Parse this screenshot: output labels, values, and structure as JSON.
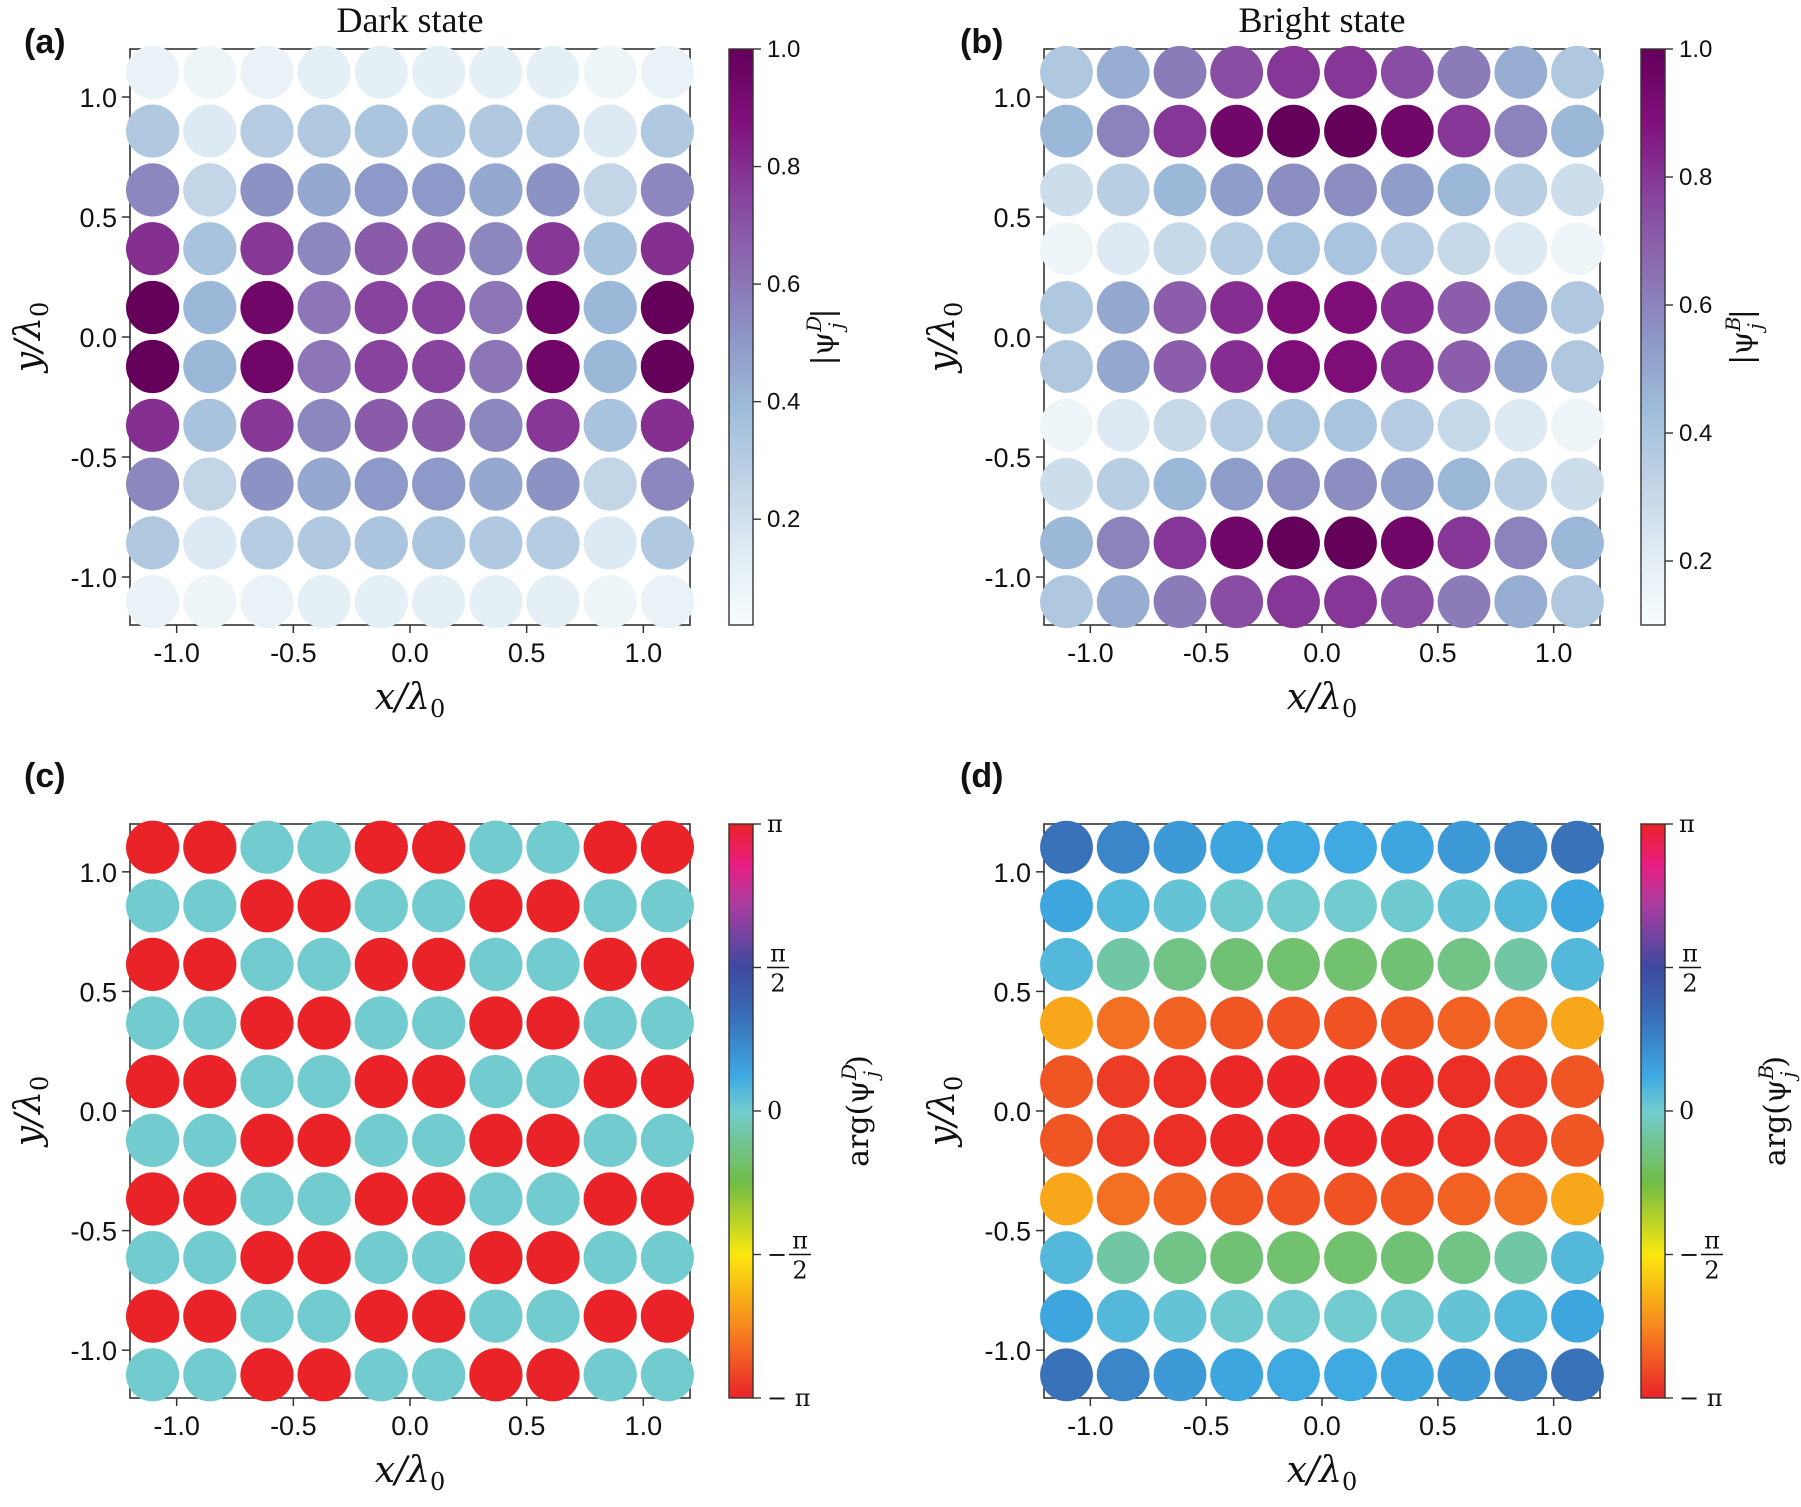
{
  "chart_data": [
    {
      "id": "a",
      "type": "scatter",
      "panel_label": "(a)",
      "title": "Dark state",
      "xlabel": "x/λ0",
      "ylabel": "y/λ0",
      "xlim": [
        -1.2,
        1.2
      ],
      "ylim": [
        -1.2,
        1.2
      ],
      "xticks": [
        "-1.0",
        "-0.5",
        "0.0",
        "0.5",
        "1.0"
      ],
      "yticks": [
        "-1.0",
        "-0.5",
        "0.0",
        "0.5",
        "1.0"
      ],
      "grid_coords": [
        -1.103,
        -0.858,
        -0.613,
        -0.368,
        -0.123,
        0.123,
        0.368,
        0.613,
        0.858,
        1.103
      ],
      "colorbar": {
        "label": "|ψ_j^D|",
        "colormap": "BuPu",
        "range": [
          0.02,
          1.0
        ],
        "ticks": [
          "1.0",
          "0.8",
          "0.6",
          "0.4",
          "0.2"
        ],
        "tick_values": [
          1.0,
          0.8,
          0.6,
          0.4,
          0.2
        ]
      },
      "values_rows_top_to_bottom": [
        [
          0.1,
          0.07,
          0.1,
          0.12,
          0.12,
          0.12,
          0.12,
          0.12,
          0.07,
          0.1
        ],
        [
          0.32,
          0.15,
          0.3,
          0.32,
          0.34,
          0.34,
          0.32,
          0.3,
          0.15,
          0.32
        ],
        [
          0.55,
          0.25,
          0.52,
          0.45,
          0.5,
          0.5,
          0.45,
          0.52,
          0.25,
          0.55
        ],
        [
          0.8,
          0.35,
          0.78,
          0.55,
          0.68,
          0.68,
          0.55,
          0.78,
          0.35,
          0.8
        ],
        [
          1.0,
          0.4,
          0.95,
          0.6,
          0.75,
          0.75,
          0.6,
          0.95,
          0.4,
          1.0
        ],
        [
          1.0,
          0.4,
          0.95,
          0.6,
          0.75,
          0.75,
          0.6,
          0.95,
          0.4,
          1.0
        ],
        [
          0.8,
          0.35,
          0.78,
          0.55,
          0.68,
          0.68,
          0.55,
          0.78,
          0.35,
          0.8
        ],
        [
          0.55,
          0.25,
          0.52,
          0.45,
          0.5,
          0.5,
          0.45,
          0.52,
          0.25,
          0.55
        ],
        [
          0.32,
          0.15,
          0.3,
          0.32,
          0.34,
          0.34,
          0.32,
          0.3,
          0.15,
          0.32
        ],
        [
          0.1,
          0.07,
          0.1,
          0.12,
          0.12,
          0.12,
          0.12,
          0.12,
          0.07,
          0.1
        ]
      ]
    },
    {
      "id": "b",
      "type": "scatter",
      "panel_label": "(b)",
      "title": "Bright state",
      "xlabel": "x/λ0",
      "ylabel": "y/λ0",
      "xlim": [
        -1.2,
        1.2
      ],
      "ylim": [
        -1.2,
        1.2
      ],
      "xticks": [
        "-1.0",
        "-0.5",
        "0.0",
        "0.5",
        "1.0"
      ],
      "yticks": [
        "-1.0",
        "-0.5",
        "0.0",
        "0.5",
        "1.0"
      ],
      "grid_coords": [
        -1.103,
        -0.858,
        -0.613,
        -0.368,
        -0.123,
        0.123,
        0.368,
        0.613,
        0.858,
        1.103
      ],
      "colorbar": {
        "label": "|ψ_j^B|",
        "colormap": "BuPu",
        "range": [
          0.1,
          1.0
        ],
        "ticks": [
          "1.0",
          "0.8",
          "0.6",
          "0.4",
          "0.2"
        ],
        "tick_values": [
          1.0,
          0.8,
          0.6,
          0.4,
          0.2
        ]
      },
      "values_rows_top_to_bottom": [
        [
          0.38,
          0.48,
          0.62,
          0.74,
          0.8,
          0.8,
          0.74,
          0.62,
          0.48,
          0.38
        ],
        [
          0.45,
          0.6,
          0.8,
          0.95,
          1.0,
          1.0,
          0.95,
          0.8,
          0.6,
          0.45
        ],
        [
          0.28,
          0.35,
          0.45,
          0.53,
          0.57,
          0.57,
          0.53,
          0.45,
          0.35,
          0.28
        ],
        [
          0.15,
          0.22,
          0.3,
          0.36,
          0.4,
          0.4,
          0.36,
          0.3,
          0.22,
          0.15
        ],
        [
          0.38,
          0.5,
          0.7,
          0.82,
          0.9,
          0.9,
          0.82,
          0.7,
          0.5,
          0.38
        ],
        [
          0.38,
          0.5,
          0.7,
          0.82,
          0.9,
          0.9,
          0.82,
          0.7,
          0.5,
          0.38
        ],
        [
          0.15,
          0.22,
          0.3,
          0.36,
          0.4,
          0.4,
          0.36,
          0.3,
          0.22,
          0.15
        ],
        [
          0.28,
          0.35,
          0.45,
          0.53,
          0.57,
          0.57,
          0.53,
          0.45,
          0.35,
          0.28
        ],
        [
          0.45,
          0.6,
          0.8,
          0.95,
          1.0,
          1.0,
          0.95,
          0.8,
          0.6,
          0.45
        ],
        [
          0.38,
          0.48,
          0.62,
          0.74,
          0.8,
          0.8,
          0.74,
          0.62,
          0.48,
          0.38
        ]
      ]
    },
    {
      "id": "c",
      "type": "scatter",
      "panel_label": "(c)",
      "title": "",
      "xlabel": "x/λ0",
      "ylabel": "y/λ0",
      "xlim": [
        -1.2,
        1.2
      ],
      "ylim": [
        -1.2,
        1.2
      ],
      "xticks": [
        "-1.0",
        "-0.5",
        "0.0",
        "0.5",
        "1.0"
      ],
      "yticks": [
        "-1.0",
        "-0.5",
        "0.0",
        "0.5",
        "1.0"
      ],
      "grid_coords": [
        -1.103,
        -0.858,
        -0.613,
        -0.368,
        -0.123,
        0.123,
        0.368,
        0.613,
        0.858,
        1.103
      ],
      "colorbar": {
        "label": "arg(ψ_j^D)",
        "colormap": "phase",
        "range": [
          -3.1416,
          3.1416
        ],
        "ticks": [
          "π",
          "π/2",
          "0",
          "− π/2",
          "− π"
        ],
        "tick_values": [
          3.1416,
          1.5708,
          0,
          -1.5708,
          -3.1416
        ]
      },
      "values_rows_top_to_bottom": [
        [
          -3.14,
          -3.14,
          0,
          0,
          -3.14,
          -3.14,
          0,
          0,
          -3.14,
          -3.14
        ],
        [
          0,
          0,
          -3.14,
          -3.14,
          0,
          0,
          -3.14,
          -3.14,
          0,
          0
        ],
        [
          -3.14,
          -3.14,
          0,
          0,
          -3.14,
          -3.14,
          0,
          0,
          -3.14,
          -3.14
        ],
        [
          0,
          0,
          -3.14,
          -3.14,
          0,
          0,
          -3.14,
          -3.14,
          0,
          0
        ],
        [
          -3.14,
          -3.14,
          0,
          0,
          -3.14,
          -3.14,
          0,
          0,
          -3.14,
          -3.14
        ],
        [
          0,
          0,
          -3.14,
          -3.14,
          0,
          0,
          -3.14,
          -3.14,
          0,
          0
        ],
        [
          -3.14,
          -3.14,
          0,
          0,
          -3.14,
          -3.14,
          0,
          0,
          -3.14,
          -3.14
        ],
        [
          0,
          0,
          -3.14,
          -3.14,
          0,
          0,
          -3.14,
          -3.14,
          0,
          0
        ],
        [
          -3.14,
          -3.14,
          0,
          0,
          -3.14,
          -3.14,
          0,
          0,
          -3.14,
          -3.14
        ],
        [
          0,
          0,
          -3.14,
          -3.14,
          0,
          0,
          -3.14,
          -3.14,
          0,
          0
        ]
      ]
    },
    {
      "id": "d",
      "type": "scatter",
      "panel_label": "(d)",
      "title": "",
      "xlabel": "x/λ0",
      "ylabel": "y/λ0",
      "xlim": [
        -1.2,
        1.2
      ],
      "ylim": [
        -1.2,
        1.2
      ],
      "xticks": [
        "-1.0",
        "-0.5",
        "0.0",
        "0.5",
        "1.0"
      ],
      "yticks": [
        "-1.0",
        "-0.5",
        "0.0",
        "0.5",
        "1.0"
      ],
      "grid_coords": [
        -1.103,
        -0.858,
        -0.613,
        -0.368,
        -0.123,
        0.123,
        0.368,
        0.613,
        0.858,
        1.103
      ],
      "colorbar": {
        "label": "arg(ψ_j^B)",
        "colormap": "phase",
        "range": [
          -3.1416,
          3.1416
        ],
        "ticks": [
          "π",
          "π/2",
          "0",
          "− π/2",
          "− π"
        ],
        "tick_values": [
          3.1416,
          1.5708,
          0,
          -1.5708,
          -3.1416
        ]
      },
      "values_rows_top_to_bottom": [
        [
          1.0,
          0.78,
          0.55,
          0.42,
          0.38,
          0.38,
          0.42,
          0.55,
          0.78,
          1.0
        ],
        [
          0.42,
          0.22,
          0.1,
          0.02,
          0.0,
          0.0,
          0.02,
          0.1,
          0.22,
          0.42
        ],
        [
          0.22,
          -0.25,
          -0.42,
          -0.52,
          -0.55,
          -0.55,
          -0.52,
          -0.42,
          -0.25,
          0.22
        ],
        [
          -2.1,
          -2.55,
          -2.65,
          -2.75,
          -2.78,
          -2.78,
          -2.75,
          -2.65,
          -2.55,
          -2.1
        ],
        [
          -2.75,
          -2.95,
          -3.05,
          -3.1,
          -3.12,
          -3.12,
          -3.1,
          -3.05,
          -2.95,
          -2.75
        ],
        [
          -2.75,
          -2.95,
          -3.05,
          -3.1,
          -3.12,
          -3.12,
          -3.1,
          -3.05,
          -2.95,
          -2.75
        ],
        [
          -2.1,
          -2.55,
          -2.65,
          -2.75,
          -2.78,
          -2.78,
          -2.75,
          -2.65,
          -2.55,
          -2.1
        ],
        [
          0.22,
          -0.25,
          -0.42,
          -0.52,
          -0.55,
          -0.55,
          -0.52,
          -0.42,
          -0.25,
          0.22
        ],
        [
          0.42,
          0.22,
          0.1,
          0.02,
          0.0,
          0.0,
          0.02,
          0.1,
          0.22,
          0.42
        ],
        [
          1.0,
          0.78,
          0.55,
          0.42,
          0.38,
          0.38,
          0.42,
          0.55,
          0.78,
          1.0
        ]
      ]
    }
  ]
}
